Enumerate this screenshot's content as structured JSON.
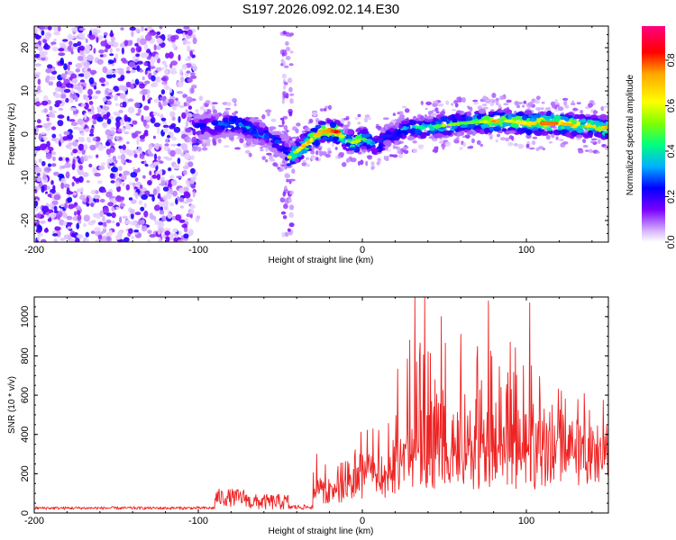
{
  "title": "S197.2026.092.02.14.E30",
  "chart_data": [
    {
      "type": "heatmap",
      "name": "spectrogram",
      "xlabel": "Height of straight line (km)",
      "ylabel": "Frequency (Hz)",
      "xlim": [
        -200,
        150
      ],
      "ylim": [
        -25,
        25
      ],
      "xticks": [
        -200,
        -100,
        0,
        100
      ],
      "yticks": [
        -20,
        -10,
        0,
        10,
        20
      ],
      "colorbar": {
        "label": "Normalized spectral amplitude",
        "range": [
          0.0,
          0.95
        ],
        "ticks": [
          0.0,
          0.2,
          0.4,
          0.6,
          0.8
        ],
        "colors": [
          "#ffffff",
          "#ab7bff",
          "#7a00ff",
          "#0000ff",
          "#00c8ff",
          "#00ff80",
          "#7fff00",
          "#ffff00",
          "#ffa500",
          "#ff0000",
          "#ff0080"
        ]
      },
      "ridge": {
        "x": [
          -102,
          -95,
          -85,
          -75,
          -65,
          -55,
          -48,
          -45,
          -40,
          -35,
          -30,
          -25,
          -20,
          -15,
          -10,
          -5,
          0,
          5,
          10,
          15,
          20,
          25,
          30,
          40,
          50,
          60,
          70,
          80,
          90,
          100,
          110,
          120,
          130,
          140,
          150
        ],
        "freq": [
          1.5,
          1.8,
          2.0,
          2.5,
          0.5,
          -1.0,
          -3.0,
          -5.5,
          -4.0,
          -2.5,
          -1.0,
          0.5,
          0.8,
          0.5,
          -1.5,
          -2.0,
          -1.0,
          -2.0,
          -2.5,
          -0.5,
          0.0,
          1.0,
          1.5,
          1.5,
          2.0,
          2.5,
          2.8,
          3.0,
          3.0,
          2.5,
          2.5,
          2.5,
          2.0,
          1.8,
          1.5
        ],
        "peak": [
          0.3,
          0.35,
          0.4,
          0.45,
          0.4,
          0.35,
          0.35,
          0.6,
          0.7,
          0.8,
          0.7,
          0.8,
          0.9,
          0.9,
          0.5,
          0.7,
          0.6,
          0.4,
          0.4,
          0.35,
          0.4,
          0.45,
          0.45,
          0.5,
          0.6,
          0.55,
          0.6,
          0.8,
          0.7,
          0.75,
          0.9,
          0.85,
          0.8,
          0.75,
          0.8
        ]
      }
    },
    {
      "type": "line",
      "name": "snr",
      "xlabel": "Height of straight line (km)",
      "ylabel": "SNR (10 * v/v)",
      "xlim": [
        -200,
        150
      ],
      "ylim": [
        0,
        1100
      ],
      "xticks": [
        -200,
        -100,
        0,
        100
      ],
      "yticks": [
        0,
        200,
        400,
        600,
        800,
        1000
      ],
      "color": "#ee2222",
      "segments": [
        {
          "x0": -200,
          "x1": -90,
          "base": 22,
          "amp": 15
        },
        {
          "x0": -90,
          "x1": -70,
          "base": 60,
          "amp": 90
        },
        {
          "x0": -70,
          "x1": -45,
          "base": 40,
          "amp": 80
        },
        {
          "x0": -45,
          "x1": -30,
          "base": 25,
          "amp": 25
        },
        {
          "x0": -30,
          "x1": -5,
          "base": 200,
          "amp": 180
        },
        {
          "x0": -5,
          "x1": 20,
          "base": 300,
          "amp": 250
        },
        {
          "x0": 20,
          "x1": 60,
          "base": 480,
          "amp": 600
        },
        {
          "x0": 60,
          "x1": 110,
          "base": 480,
          "amp": 520
        },
        {
          "x0": 110,
          "x1": 150,
          "base": 500,
          "amp": 320
        }
      ],
      "peaks": [
        {
          "x": 32,
          "y": 1100
        },
        {
          "x": 38,
          "y": 1100
        },
        {
          "x": 48,
          "y": 1000
        },
        {
          "x": 60,
          "y": 910
        },
        {
          "x": 77,
          "y": 1080
        },
        {
          "x": 90,
          "y": 870
        },
        {
          "x": 102,
          "y": 1070
        }
      ]
    }
  ]
}
